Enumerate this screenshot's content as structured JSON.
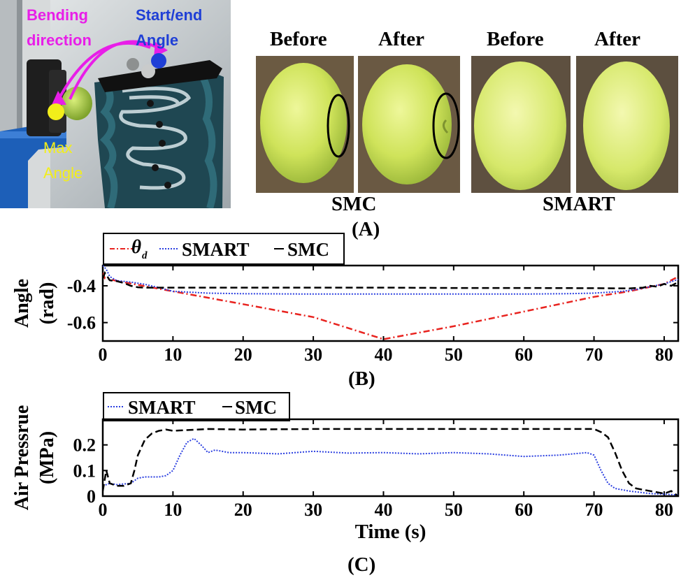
{
  "photo_setup": {
    "bending_direction_label": "Bending direction",
    "start_end_label": "Start/end Angle",
    "max_angle_label": "Max Angle",
    "colors": {
      "bending": "#e81ee8",
      "start_end": "#1f3fd6",
      "max": "#f2ee1a"
    }
  },
  "grape_panels": {
    "before_label_1": "Before",
    "after_label_1": "After",
    "before_label_2": "Before",
    "after_label_2": "After",
    "group_1": "SMC",
    "group_2": "SMART",
    "panel_label": "(A)"
  },
  "legend_b": {
    "theta_symbol": "θ",
    "theta_sub": "d",
    "smart": "SMART",
    "smc": "SMC"
  },
  "legend_c": {
    "smart": "SMART",
    "smc": "SMC"
  },
  "panel_b_label": "(B)",
  "panel_c_label": "(C)",
  "colors": {
    "desired": "#e8231f",
    "smart": "#2b3fe0",
    "smc": "#000000"
  },
  "chart_data": [
    {
      "type": "line",
      "ylabel": "Angle (rad)",
      "xlim": [
        0,
        82
      ],
      "ylim": [
        -0.7,
        -0.29
      ],
      "xticks": [
        0,
        10,
        20,
        30,
        40,
        50,
        60,
        70,
        80
      ],
      "yticks": [
        -0.4,
        -0.6
      ],
      "ytick_labels": [
        "-0.4",
        "-0.6"
      ],
      "series": [
        {
          "name": "θd",
          "style": "dash-dot",
          "color": "#e8231f",
          "x": [
            0,
            0.3,
            1,
            2,
            5,
            10,
            20,
            30,
            40,
            50,
            60,
            70,
            75,
            80,
            82
          ],
          "y": [
            -0.33,
            -0.36,
            -0.365,
            -0.373,
            -0.395,
            -0.43,
            -0.5,
            -0.57,
            -0.69,
            -0.62,
            -0.54,
            -0.46,
            -0.43,
            -0.39,
            -0.35
          ]
        },
        {
          "name": "SMART",
          "style": "dotted",
          "color": "#2b3fe0",
          "x": [
            0,
            0.5,
            1,
            2,
            4,
            6,
            8,
            10,
            15,
            20,
            30,
            40,
            50,
            60,
            66,
            70,
            74,
            76,
            78,
            80,
            82
          ],
          "y": [
            -0.29,
            -0.31,
            -0.35,
            -0.372,
            -0.38,
            -0.392,
            -0.41,
            -0.43,
            -0.44,
            -0.443,
            -0.445,
            -0.445,
            -0.445,
            -0.445,
            -0.443,
            -0.44,
            -0.43,
            -0.42,
            -0.405,
            -0.39,
            -0.365
          ]
        },
        {
          "name": "SMC",
          "style": "dashed",
          "color": "#000000",
          "x": [
            0,
            0.3,
            1,
            2,
            3,
            4,
            5,
            6,
            10,
            20,
            30,
            40,
            50,
            60,
            70,
            75,
            77,
            78,
            79,
            80,
            81,
            82
          ],
          "y": [
            -0.36,
            -0.33,
            -0.37,
            -0.375,
            -0.385,
            -0.4,
            -0.408,
            -0.41,
            -0.41,
            -0.41,
            -0.41,
            -0.41,
            -0.412,
            -0.412,
            -0.413,
            -0.414,
            -0.41,
            -0.4,
            -0.405,
            -0.39,
            -0.4,
            -0.38
          ]
        }
      ]
    },
    {
      "type": "line",
      "ylabel": "Air Pressrue (MPa)",
      "xlabel": "Time (s)",
      "xlim": [
        0,
        82
      ],
      "ylim": [
        0,
        0.3
      ],
      "xticks": [
        0,
        10,
        20,
        30,
        40,
        50,
        60,
        70,
        80
      ],
      "yticks": [
        0,
        0.1,
        0.2
      ],
      "ytick_labels": [
        "0",
        "0.1",
        "0.2"
      ],
      "series": [
        {
          "name": "SMART",
          "style": "dotted",
          "color": "#2b3fe0",
          "x": [
            0,
            1,
            2,
            4,
            5,
            6,
            8,
            9,
            10,
            11,
            12,
            13,
            14,
            15,
            16,
            18,
            20,
            25,
            30,
            35,
            40,
            45,
            50,
            55,
            60,
            65,
            69,
            70,
            71,
            72,
            73,
            75,
            78,
            80,
            82
          ],
          "y": [
            0.04,
            0.05,
            0.045,
            0.05,
            0.07,
            0.075,
            0.075,
            0.08,
            0.1,
            0.16,
            0.21,
            0.225,
            0.2,
            0.17,
            0.18,
            0.17,
            0.17,
            0.165,
            0.175,
            0.168,
            0.17,
            0.165,
            0.17,
            0.165,
            0.155,
            0.16,
            0.17,
            0.16,
            0.1,
            0.05,
            0.03,
            0.02,
            0.01,
            0.008,
            0.005
          ]
        },
        {
          "name": "SMC",
          "style": "dashed",
          "color": "#000000",
          "x": [
            0,
            0.5,
            1,
            2,
            3,
            4,
            4.5,
            5,
            6,
            7,
            8,
            9,
            10,
            15,
            20,
            30,
            40,
            50,
            60,
            70,
            71,
            72,
            73,
            74,
            75,
            76,
            78,
            80,
            81,
            82
          ],
          "y": [
            0.02,
            0.1,
            0.05,
            0.04,
            0.04,
            0.05,
            0.1,
            0.16,
            0.22,
            0.245,
            0.255,
            0.26,
            0.255,
            0.262,
            0.26,
            0.262,
            0.262,
            0.262,
            0.262,
            0.262,
            0.25,
            0.23,
            0.17,
            0.1,
            0.05,
            0.03,
            0.02,
            0.01,
            0.02,
            0.0
          ]
        }
      ]
    }
  ]
}
